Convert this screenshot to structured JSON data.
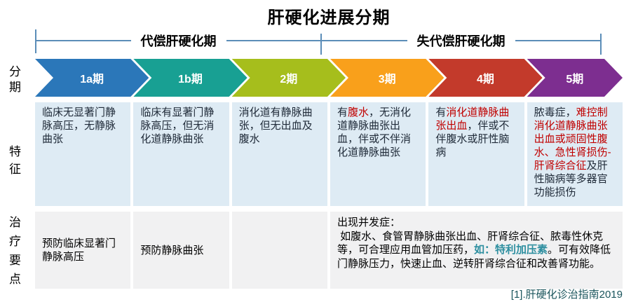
{
  "title": "肝硬化进展分期",
  "phases": {
    "compensated": "代偿肝硬化期",
    "decompensated": "失代偿肝硬化期"
  },
  "row_labels": {
    "stage": "分期",
    "features": "特征",
    "treatment": "治疗要点"
  },
  "colors": {
    "bracket_line": "#5B8DB8",
    "feature_cell_bg": "#DEEBF4",
    "treatment_cell_bg": "#F1F1F2",
    "feature_text": "#1F2A38",
    "highlight_red": "#C00000",
    "highlight_teal": "#2E8FA0"
  },
  "stages": [
    {
      "label": "1a期",
      "color": "#2B77B9",
      "feature": [
        {
          "t": "临床无显著门静脉高压，无静脉曲张"
        }
      ],
      "treatment": "预防临床显著门静脉高压"
    },
    {
      "label": "1b期",
      "color": "#18A093",
      "feature": [
        {
          "t": "临床有显著门静脉高压，但无消化道静脉曲张"
        }
      ],
      "treatment": "预防静脉曲张"
    },
    {
      "label": "2期",
      "color": "#A6BE1C",
      "feature": [
        {
          "t": "消化道有静脉曲张，但无出血及腹水"
        }
      ],
      "treatment": ""
    },
    {
      "label": "3期",
      "color": "#F9A01B",
      "feature": [
        {
          "t": "有"
        },
        {
          "t": "腹水",
          "c": "red"
        },
        {
          "t": "，无消化道静脉曲张出血，伴或不伴消化道静脉曲张"
        }
      ]
    },
    {
      "label": "4期",
      "color": "#C33A2B",
      "feature": [
        {
          "t": "有"
        },
        {
          "t": "消化道静脉曲张出血",
          "c": "red"
        },
        {
          "t": "，伴或不伴腹水或肝性脑病"
        }
      ]
    },
    {
      "label": "5期",
      "color": "#7D2E90",
      "feature": [
        {
          "t": "脓毒症，"
        },
        {
          "t": "难控制消化道静脉曲张出血或顽固性腹水、急性肾损伤-肝肾综合征",
          "c": "red"
        },
        {
          "t": "及肝性脑病等多器官功能损伤"
        }
      ]
    }
  ],
  "treatment_merged": {
    "segments": [
      {
        "t": "出现并发症：\n 如腹水、食管胃静脉曲张出血、肝肾综合征、脓毒性休克等，可合理应用血管加压药，"
      },
      {
        "t": "如：特利加压素",
        "c": "teal"
      },
      {
        "t": "。可有效降低门静脉压力，快速止血、逆转肝肾综合征和改善肾功能。"
      }
    ]
  },
  "footnote": "[1].肝硬化诊治指南2019"
}
